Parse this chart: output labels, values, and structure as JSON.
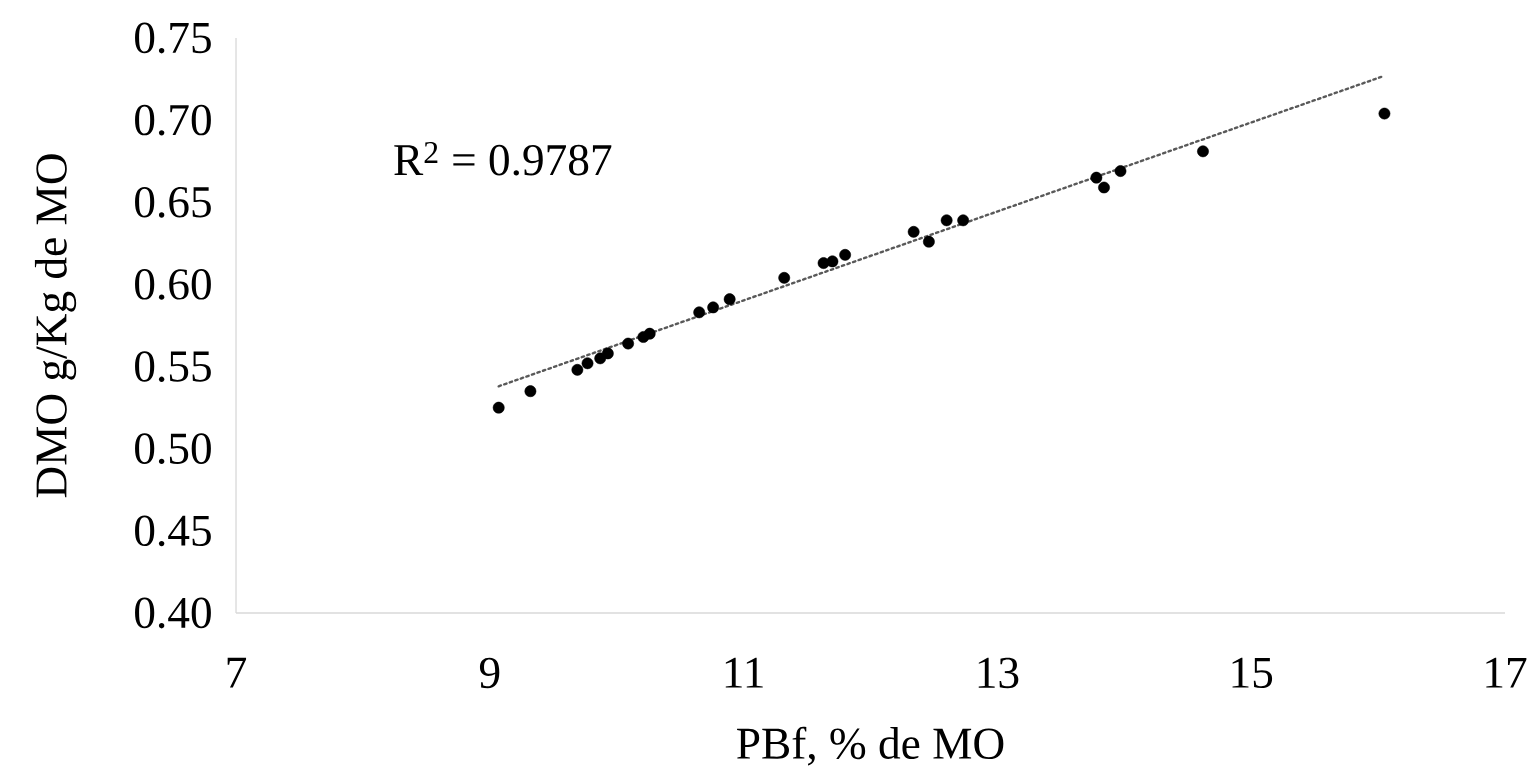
{
  "chart_data": {
    "type": "scatter",
    "xlabel": "PBf, % de MO",
    "ylabel": "DMO g/Kg de MO",
    "annotations": [
      "R$^{2}$ = 0.9787"
    ],
    "xlim": [
      7,
      17
    ],
    "xticks": [
      7,
      9,
      11,
      13,
      15,
      17
    ],
    "ylim": [
      0.4,
      0.75
    ],
    "yticks": [
      {
        "value": 0.4,
        "label": "0.40"
      },
      0.45,
      {
        "value": 0.5,
        "label": "0.50"
      },
      0.55,
      {
        "value": 0.6,
        "label": "0.60"
      },
      0.65,
      {
        "value": 0.7,
        "label": "0.70"
      },
      0.75
    ],
    "series": [
      {
        "marker": "circle",
        "color": "#000000",
        "x": [
          9.07,
          9.32,
          9.69,
          9.77,
          9.87,
          9.93,
          10.09,
          10.21,
          10.26,
          10.65,
          10.76,
          10.89,
          11.32,
          11.63,
          11.7,
          11.8,
          12.34,
          12.46,
          12.6,
          12.73,
          13.78,
          13.84,
          13.97,
          14.62,
          16.05
        ],
        "values": [
          0.525,
          0.535,
          0.548,
          0.552,
          0.555,
          0.558,
          0.564,
          0.568,
          0.57,
          0.583,
          0.586,
          0.591,
          0.604,
          0.613,
          0.614,
          0.618,
          0.632,
          0.626,
          0.639,
          0.639,
          0.665,
          0.659,
          0.669,
          0.681,
          0.704
        ]
      },
      {
        "type": "line",
        "color": "#595959",
        "line_style": "dotted",
        "marker": "none",
        "x": [
          9.07,
          16.05
        ],
        "values": [
          0.538,
          0.727
        ]
      }
    ]
  }
}
